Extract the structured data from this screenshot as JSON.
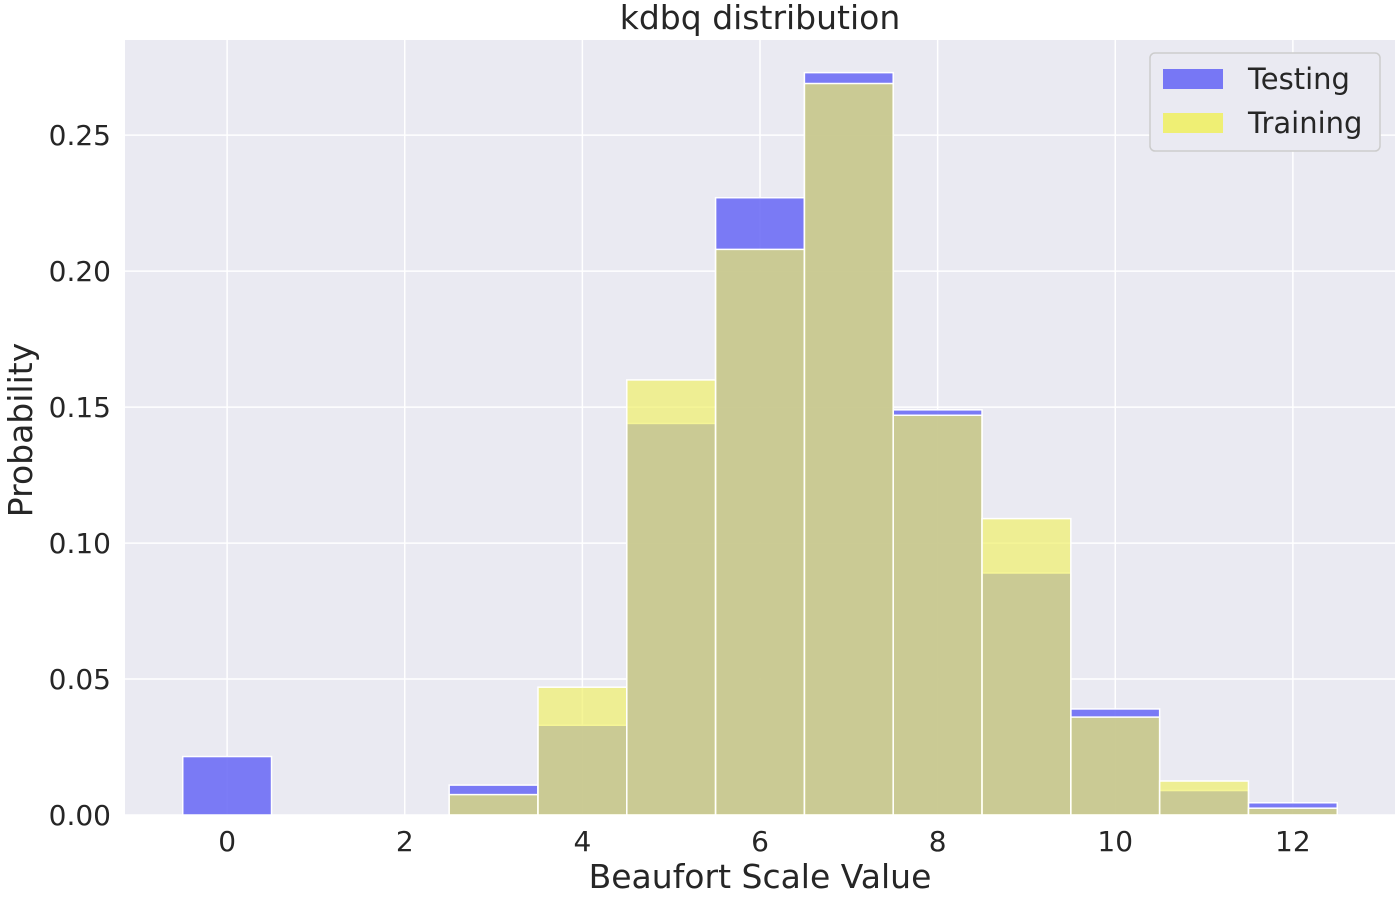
{
  "chart_data": {
    "type": "bar",
    "title": "kdbq distribution",
    "xlabel": "Beaufort Scale Value",
    "ylabel": "Probability",
    "xlim": [
      -1.15,
      13.15
    ],
    "ylim": [
      0,
      0.285
    ],
    "x_ticks": [
      0,
      2,
      4,
      6,
      8,
      10,
      12
    ],
    "y_ticks": [
      0.0,
      0.05,
      0.1,
      0.15,
      0.2,
      0.25
    ],
    "y_tick_labels": [
      "0.00",
      "0.05",
      "0.10",
      "0.15",
      "0.20",
      "0.25"
    ],
    "bin_centers": [
      0,
      1,
      2,
      3,
      4,
      5,
      6,
      7,
      8,
      9,
      10,
      11,
      12
    ],
    "bin_width": 1,
    "grid": true,
    "legend_position": "top-right",
    "series": [
      {
        "name": "Testing",
        "color": "#6a6af5",
        "values": [
          0.0215,
          0,
          0,
          0.011,
          0.033,
          0.144,
          0.227,
          0.273,
          0.149,
          0.089,
          0.039,
          0.009,
          0.0045
        ]
      },
      {
        "name": "Training",
        "color": "#f0f066",
        "values": [
          0,
          0,
          0,
          0.0075,
          0.047,
          0.16,
          0.208,
          0.269,
          0.147,
          0.109,
          0.036,
          0.0125,
          0.0025
        ]
      }
    ],
    "overlap_color": "#b7b67e",
    "background": "#eaeaf2"
  }
}
